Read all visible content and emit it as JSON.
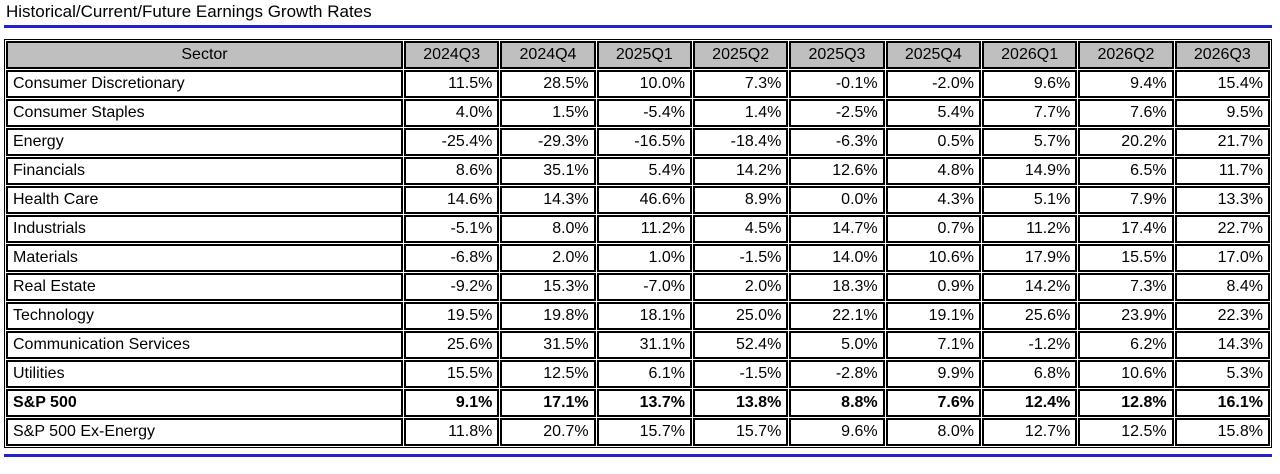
{
  "title": "Historical/Current/Future Earnings Growth Rates",
  "colors": {
    "accent_blue": "#2222CC",
    "header_gray": "#BFBFBF",
    "border_black": "#000000"
  },
  "chart_data": {
    "type": "table",
    "title": "Historical/Current/Future Earnings Growth Rates",
    "value_format": "percent_one_decimal",
    "columns": [
      "Sector",
      "2024Q3",
      "2024Q4",
      "2025Q1",
      "2025Q2",
      "2025Q3",
      "2025Q4",
      "2026Q1",
      "2026Q2",
      "2026Q3"
    ],
    "rows": [
      {
        "sector": "Consumer Discretionary",
        "bold": false,
        "values": [
          11.5,
          28.5,
          10.0,
          7.3,
          -0.1,
          -2.0,
          9.6,
          9.4,
          15.4
        ]
      },
      {
        "sector": "Consumer Staples",
        "bold": false,
        "values": [
          4.0,
          1.5,
          -5.4,
          1.4,
          -2.5,
          5.4,
          7.7,
          7.6,
          9.5
        ]
      },
      {
        "sector": "Energy",
        "bold": false,
        "values": [
          -25.4,
          -29.3,
          -16.5,
          -18.4,
          -6.3,
          0.5,
          5.7,
          20.2,
          21.7
        ]
      },
      {
        "sector": "Financials",
        "bold": false,
        "values": [
          8.6,
          35.1,
          5.4,
          14.2,
          12.6,
          4.8,
          14.9,
          6.5,
          11.7
        ]
      },
      {
        "sector": "Health Care",
        "bold": false,
        "values": [
          14.6,
          14.3,
          46.6,
          8.9,
          0.0,
          4.3,
          5.1,
          7.9,
          13.3
        ]
      },
      {
        "sector": "Industrials",
        "bold": false,
        "values": [
          -5.1,
          8.0,
          11.2,
          4.5,
          14.7,
          0.7,
          11.2,
          17.4,
          22.7
        ]
      },
      {
        "sector": "Materials",
        "bold": false,
        "values": [
          -6.8,
          2.0,
          1.0,
          -1.5,
          14.0,
          10.6,
          17.9,
          15.5,
          17.0
        ]
      },
      {
        "sector": "Real Estate",
        "bold": false,
        "values": [
          -9.2,
          15.3,
          -7.0,
          2.0,
          18.3,
          0.9,
          14.2,
          7.3,
          8.4
        ]
      },
      {
        "sector": "Technology",
        "bold": false,
        "values": [
          19.5,
          19.8,
          18.1,
          25.0,
          22.1,
          19.1,
          25.6,
          23.9,
          22.3
        ]
      },
      {
        "sector": "Communication Services",
        "bold": false,
        "values": [
          25.6,
          31.5,
          31.1,
          52.4,
          5.0,
          7.1,
          -1.2,
          6.2,
          14.3
        ]
      },
      {
        "sector": "Utilities",
        "bold": false,
        "values": [
          15.5,
          12.5,
          6.1,
          -1.5,
          -2.8,
          9.9,
          6.8,
          10.6,
          5.3
        ]
      },
      {
        "sector": "S&P 500",
        "bold": true,
        "values": [
          9.1,
          17.1,
          13.7,
          13.8,
          8.8,
          7.6,
          12.4,
          12.8,
          16.1
        ]
      },
      {
        "sector": "S&P 500 Ex-Energy",
        "bold": false,
        "values": [
          11.8,
          20.7,
          15.7,
          15.7,
          9.6,
          8.0,
          12.7,
          12.5,
          15.8
        ]
      }
    ]
  }
}
